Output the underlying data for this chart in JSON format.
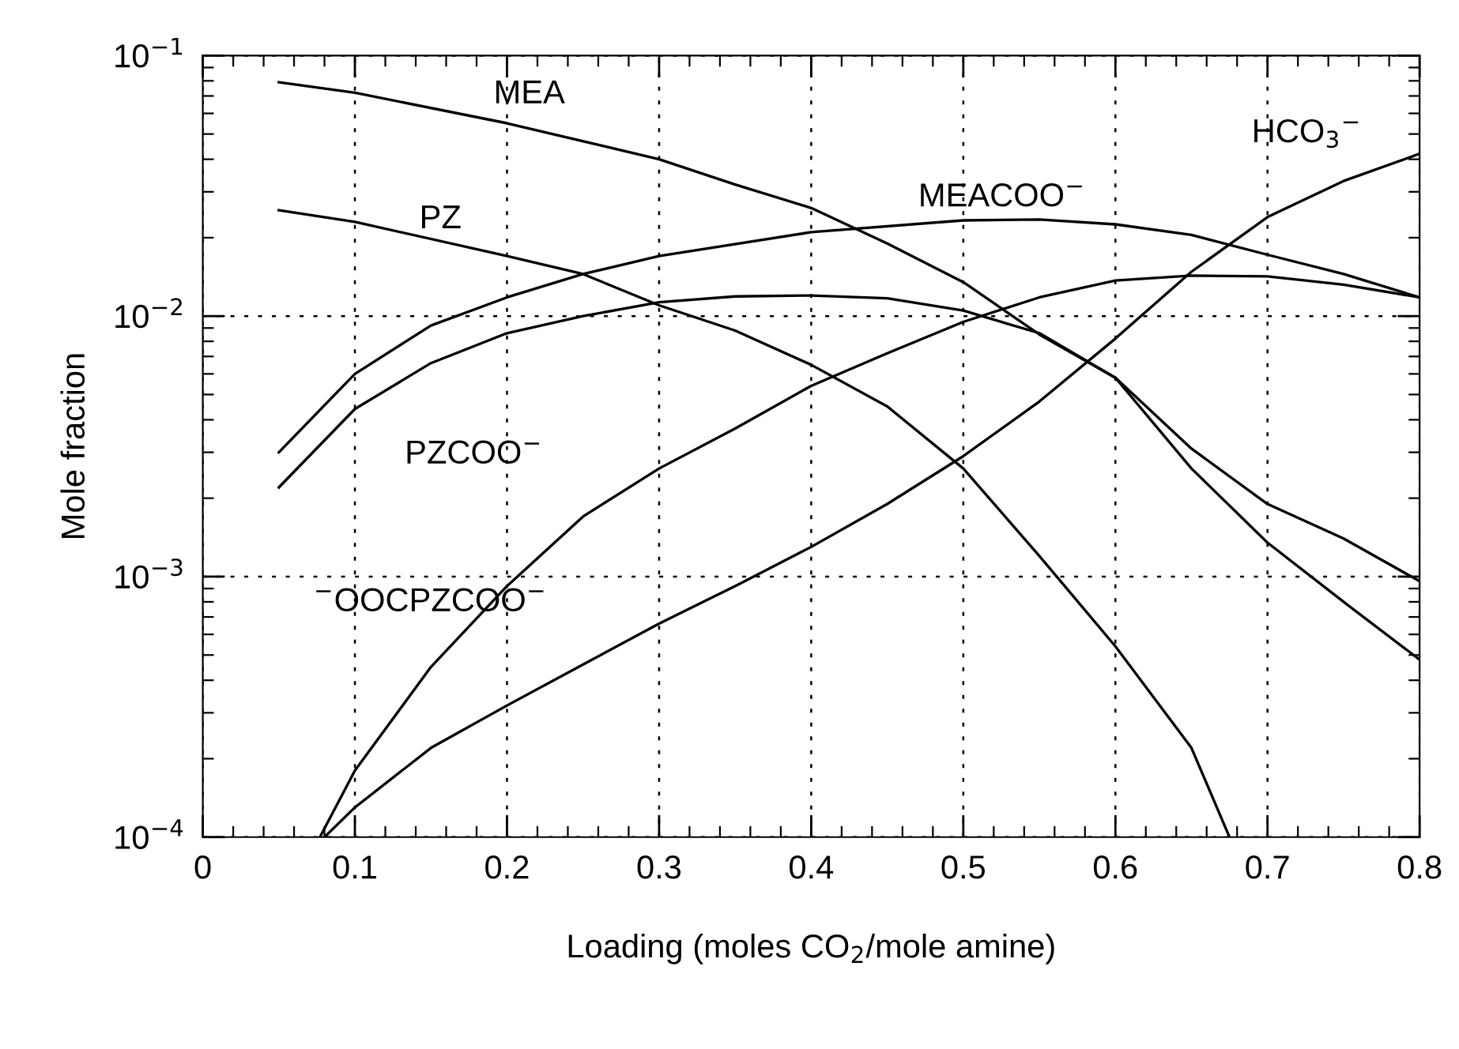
{
  "chart_data": {
    "type": "line",
    "xlabel": "Loading (moles CO$_{2}$/mole amine)",
    "ylabel": "Mole fraction",
    "log": "y",
    "grid": true,
    "line_style": "solid",
    "marker": "none",
    "xlim": [
      0,
      0.8
    ],
    "xticks": [
      0,
      0.1,
      0.2,
      0.3,
      0.4,
      0.5,
      0.6,
      0.7,
      0.8
    ],
    "ylim": [
      0.0001,
      0.1
    ],
    "yticks": [
      {
        "value": 0.0001,
        "label": "10$^{−4}$"
      },
      {
        "value": 0.001,
        "label": "10$^{−3}$"
      },
      {
        "value": 0.01,
        "label": "10$^{−2}$"
      },
      {
        "value": 0.1,
        "label": "10$^{−1}$"
      }
    ],
    "series": [
      {
        "color": "#000000",
        "x": [
          0.05,
          0.1,
          0.2,
          0.3,
          0.35,
          0.4,
          0.45,
          0.5,
          0.55,
          0.6,
          0.65,
          0.7,
          0.75,
          0.8
        ],
        "values": [
          0.079,
          0.072,
          0.055,
          0.04,
          0.032,
          0.026,
          0.019,
          0.0135,
          0.0085,
          0.0058,
          0.0031,
          0.0019,
          0.0014,
          0.00096
        ]
      },
      {
        "color": "#000000",
        "x": [
          0.05,
          0.1,
          0.2,
          0.25,
          0.3,
          0.35,
          0.4,
          0.45,
          0.5,
          0.55,
          0.6,
          0.65,
          0.675
        ],
        "values": [
          0.0255,
          0.023,
          0.017,
          0.0145,
          0.011,
          0.0088,
          0.0065,
          0.0045,
          0.0026,
          0.0012,
          0.00054,
          0.00022,
          0.0001
        ]
      },
      {
        "color": "#000000",
        "x": [
          0.05,
          0.1,
          0.15,
          0.2,
          0.25,
          0.3,
          0.4,
          0.5,
          0.55,
          0.6,
          0.65,
          0.7,
          0.75,
          0.8
        ],
        "values": [
          0.003,
          0.006,
          0.0092,
          0.0118,
          0.0145,
          0.017,
          0.021,
          0.0233,
          0.0235,
          0.0225,
          0.0205,
          0.0172,
          0.0145,
          0.0118
        ]
      },
      {
        "color": "#000000",
        "x": [
          0.05,
          0.1,
          0.15,
          0.2,
          0.25,
          0.3,
          0.35,
          0.4,
          0.45,
          0.5,
          0.55,
          0.6,
          0.65,
          0.7,
          0.75,
          0.8
        ],
        "values": [
          0.0022,
          0.0044,
          0.0066,
          0.0086,
          0.01,
          0.0113,
          0.0119,
          0.012,
          0.0117,
          0.0105,
          0.0086,
          0.0058,
          0.0026,
          0.00135,
          0.0008,
          0.00048
        ]
      },
      {
        "color": "#000000",
        "x": [
          0.08,
          0.1,
          0.15,
          0.2,
          0.25,
          0.3,
          0.35,
          0.4,
          0.45,
          0.5,
          0.55,
          0.6,
          0.65,
          0.7,
          0.75,
          0.8
        ],
        "values": [
          0.0001,
          0.00013,
          0.00022,
          0.00032,
          0.00046,
          0.00066,
          0.00092,
          0.0013,
          0.0019,
          0.0029,
          0.0047,
          0.0082,
          0.0148,
          0.024,
          0.033,
          0.042
        ]
      },
      {
        "color": "#000000",
        "x": [
          0.077,
          0.1,
          0.15,
          0.2,
          0.25,
          0.3,
          0.35,
          0.4,
          0.45,
          0.5,
          0.55,
          0.6,
          0.65,
          0.7,
          0.75,
          0.8
        ],
        "values": [
          0.0001,
          0.00018,
          0.00045,
          0.00092,
          0.0017,
          0.0026,
          0.0037,
          0.0054,
          0.0072,
          0.0095,
          0.0118,
          0.0137,
          0.0143,
          0.0142,
          0.0132,
          0.0118
        ]
      }
    ],
    "annotations": [
      "MEA",
      "PZ",
      "MEACOO$^{−}$",
      "HCO$_{3}$$^{−}$",
      "PZCOO$^{−}$",
      "$^{−}$OOCPZCOO$^{−}$"
    ]
  }
}
